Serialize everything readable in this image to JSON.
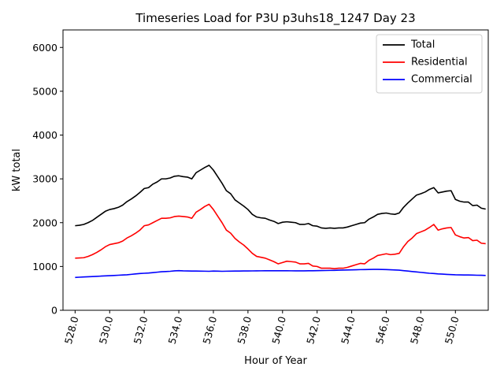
{
  "chart_data": {
    "type": "line",
    "title": "Timeseries Load for P3U p3uhs18_1247  Day 23",
    "xlabel": "Hour of Year",
    "ylabel": "kW total",
    "xlim": [
      527.3,
      551.9
    ],
    "ylim": [
      0,
      6400
    ],
    "xticks": [
      528,
      530,
      532,
      534,
      536,
      538,
      540,
      542,
      544,
      546,
      548,
      550
    ],
    "xtick_labels": [
      "528.0",
      "530.0",
      "532.0",
      "534.0",
      "536.0",
      "538.0",
      "540.0",
      "542.0",
      "544.0",
      "546.0",
      "548.0",
      "550.0"
    ],
    "yticks": [
      0,
      1000,
      2000,
      3000,
      4000,
      5000,
      6000
    ],
    "ytick_labels": [
      "0",
      "1000",
      "2000",
      "3000",
      "4000",
      "5000",
      "6000"
    ],
    "legend_position": "top-right",
    "x": [
      528.0,
      528.25,
      528.5,
      528.75,
      529.0,
      529.25,
      529.5,
      529.75,
      530.0,
      530.25,
      530.5,
      530.75,
      531.0,
      531.25,
      531.5,
      531.75,
      532.0,
      532.25,
      532.5,
      532.75,
      533.0,
      533.25,
      533.5,
      533.75,
      534.0,
      534.25,
      534.5,
      534.75,
      535.0,
      535.25,
      535.5,
      535.75,
      536.0,
      536.25,
      536.5,
      536.75,
      537.0,
      537.25,
      537.5,
      537.75,
      538.0,
      538.25,
      538.5,
      538.75,
      539.0,
      539.25,
      539.5,
      539.75,
      540.0,
      540.25,
      540.5,
      540.75,
      541.0,
      541.25,
      541.5,
      541.75,
      542.0,
      542.25,
      542.5,
      542.75,
      543.0,
      543.25,
      543.5,
      543.75,
      544.0,
      544.25,
      544.5,
      544.75,
      545.0,
      545.25,
      545.5,
      545.75,
      546.0,
      546.25,
      546.5,
      546.75,
      547.0,
      547.25,
      547.5,
      547.75,
      548.0,
      548.25,
      548.5,
      548.75,
      549.0,
      549.25,
      549.5,
      549.75,
      550.0,
      550.25,
      550.5,
      550.75,
      551.0,
      551.25,
      551.5,
      551.75
    ],
    "series": [
      {
        "name": "Total",
        "color": "#000000",
        "values": [
          1930,
          1940,
          1960,
          2000,
          2050,
          2120,
          2190,
          2260,
          2300,
          2320,
          2350,
          2400,
          2480,
          2540,
          2610,
          2690,
          2780,
          2800,
          2880,
          2930,
          3000,
          3000,
          3020,
          3060,
          3070,
          3050,
          3040,
          3000,
          3140,
          3200,
          3260,
          3310,
          3200,
          3050,
          2900,
          2730,
          2660,
          2520,
          2450,
          2380,
          2300,
          2190,
          2130,
          2110,
          2100,
          2060,
          2030,
          1980,
          2010,
          2020,
          2010,
          2000,
          1960,
          1960,
          1980,
          1930,
          1920,
          1880,
          1870,
          1880,
          1870,
          1880,
          1880,
          1900,
          1930,
          1960,
          1990,
          2000,
          2080,
          2130,
          2190,
          2210,
          2220,
          2200,
          2190,
          2220,
          2350,
          2450,
          2540,
          2630,
          2660,
          2700,
          2760,
          2800,
          2680,
          2700,
          2720,
          2730,
          2530,
          2490,
          2470,
          2470,
          2390,
          2400,
          2330,
          2310
        ]
      },
      {
        "name": "Residential",
        "color": "#ff0000",
        "values": [
          1190,
          1195,
          1200,
          1230,
          1270,
          1320,
          1380,
          1450,
          1500,
          1520,
          1540,
          1580,
          1650,
          1700,
          1760,
          1830,
          1930,
          1950,
          2000,
          2050,
          2100,
          2100,
          2110,
          2140,
          2150,
          2140,
          2130,
          2100,
          2240,
          2300,
          2370,
          2420,
          2300,
          2150,
          2000,
          1830,
          1760,
          1640,
          1560,
          1490,
          1400,
          1300,
          1230,
          1210,
          1190,
          1150,
          1110,
          1060,
          1090,
          1120,
          1110,
          1100,
          1060,
          1060,
          1070,
          1010,
          1000,
          960,
          960,
          960,
          950,
          960,
          960,
          980,
          1010,
          1040,
          1070,
          1060,
          1140,
          1190,
          1250,
          1270,
          1290,
          1270,
          1280,
          1300,
          1450,
          1570,
          1650,
          1750,
          1790,
          1830,
          1890,
          1960,
          1830,
          1860,
          1880,
          1890,
          1720,
          1680,
          1650,
          1660,
          1590,
          1600,
          1530,
          1520
        ]
      },
      {
        "name": "Commercial",
        "color": "#0000ff",
        "values": [
          750,
          755,
          760,
          765,
          770,
          775,
          780,
          785,
          790,
          795,
          800,
          805,
          810,
          820,
          830,
          840,
          845,
          850,
          860,
          870,
          880,
          885,
          890,
          900,
          905,
          900,
          898,
          895,
          895,
          893,
          892,
          890,
          895,
          893,
          890,
          892,
          893,
          895,
          896,
          897,
          898,
          899,
          900,
          901,
          902,
          903,
          903,
          903,
          903,
          902,
          901,
          900,
          900,
          900,
          902,
          903,
          905,
          906,
          908,
          910,
          912,
          915,
          918,
          920,
          922,
          925,
          928,
          930,
          932,
          934,
          933,
          932,
          930,
          925,
          920,
          915,
          905,
          895,
          885,
          875,
          865,
          855,
          845,
          840,
          830,
          825,
          820,
          815,
          810,
          808,
          806,
          805,
          803,
          800,
          798,
          795
        ]
      }
    ]
  }
}
